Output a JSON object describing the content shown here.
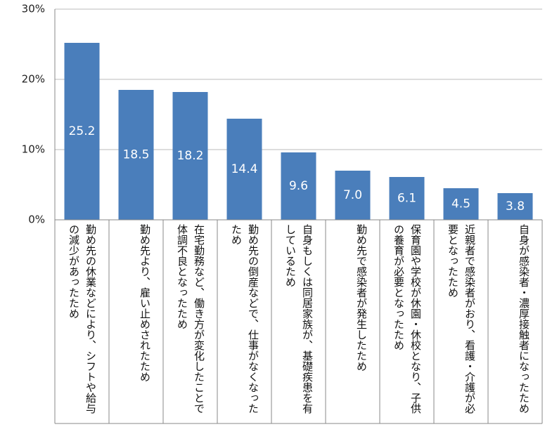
{
  "chart_data": {
    "type": "bar",
    "categories": [
      "勤め先の休業などにより、シフトや給与の減少があったため",
      "勤め先より、雇い止めされたため",
      "在宅勤務など、働き方が変化したことで体調不良となったため",
      "勤め先の倒産などで、仕事がなくなったため",
      "自身もしくは同居家族が、基礎疾患を有しているため",
      "勤め先で感染者が発生したため",
      "保育園や学校が休園・休校となり、子供の養育が必要となったため",
      "近親者で感染者がおり、看護・介護が必要となったため",
      "自身が感染者・濃厚接触者になったため"
    ],
    "values": [
      25.2,
      18.5,
      18.2,
      14.4,
      9.6,
      7.0,
      6.1,
      4.5,
      3.8
    ],
    "value_labels": [
      "25.2",
      "18.5",
      "18.2",
      "14.4",
      "9.6",
      "7.0",
      "6.1",
      "4.5",
      "3.8"
    ],
    "color": "#4a7ebb",
    "ylim": [
      0,
      30
    ],
    "yticks": [
      {
        "value": 0,
        "label": "0%"
      },
      {
        "value": 10,
        "label": "10%"
      },
      {
        "value": 20,
        "label": "20%"
      },
      {
        "value": 30,
        "label": "30%"
      }
    ],
    "grid": true
  }
}
